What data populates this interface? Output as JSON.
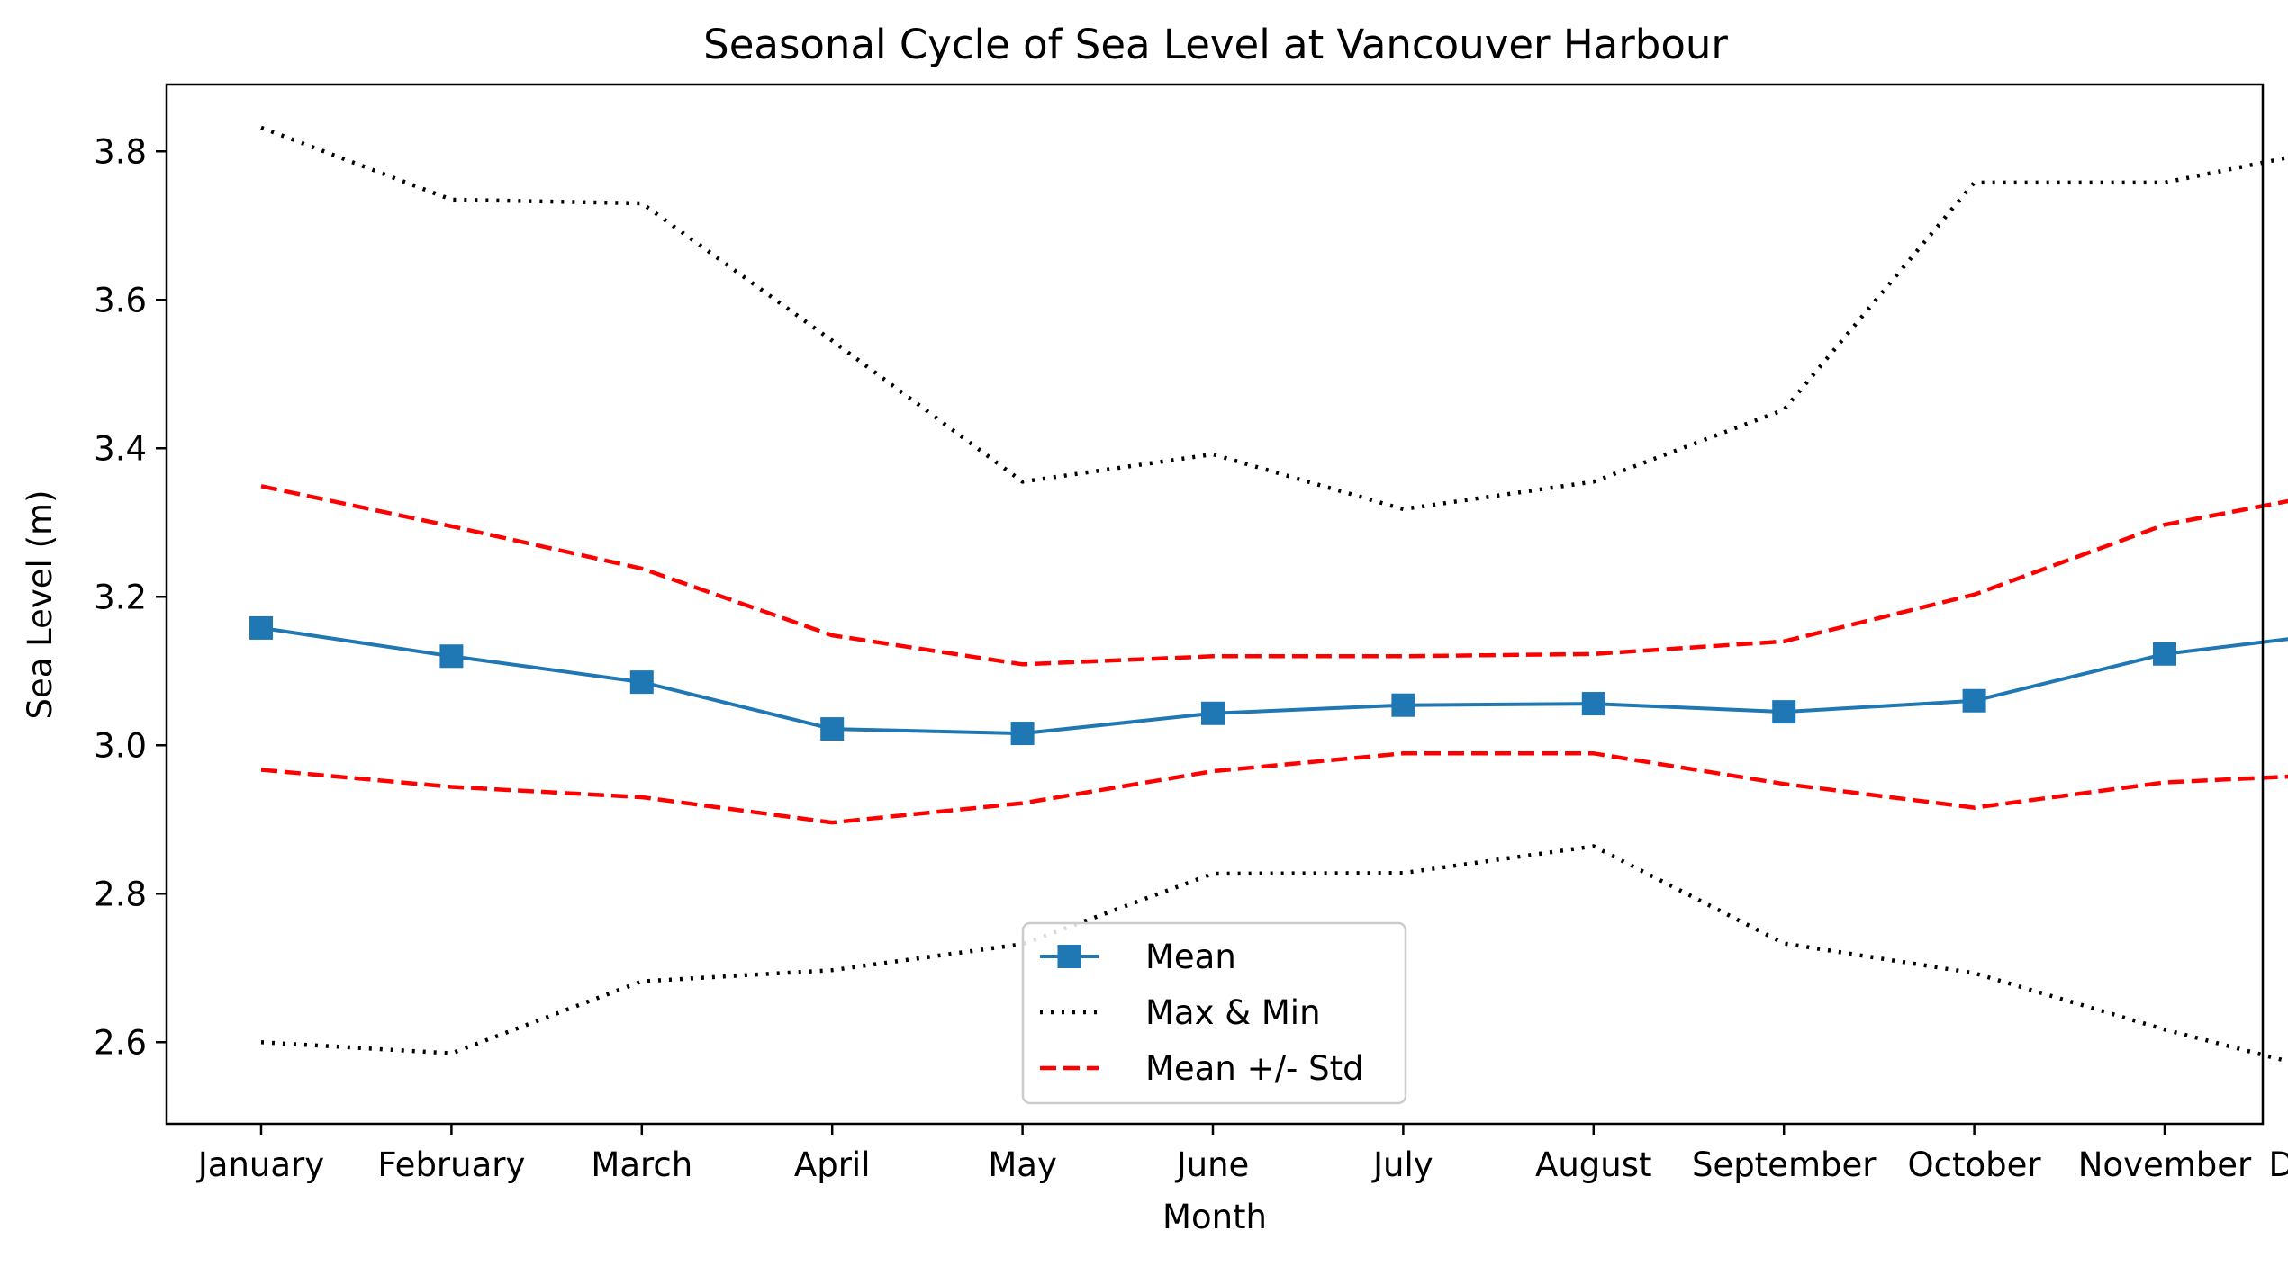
{
  "chart_data": {
    "type": "line",
    "title": "Seasonal Cycle of Sea Level at Vancouver Harbour",
    "xlabel": "Month",
    "ylabel": "Sea Level (m)",
    "categories": [
      "January",
      "February",
      "March",
      "April",
      "May",
      "June",
      "July",
      "August",
      "September",
      "October",
      "November",
      "December"
    ],
    "ylim": [
      2.49,
      3.89
    ],
    "yticks": [
      2.6,
      2.8,
      3.0,
      3.2,
      3.4,
      3.6,
      3.8
    ],
    "ytick_labels": [
      "2.6",
      "2.8",
      "3.0",
      "3.2",
      "3.4",
      "3.6",
      "3.8"
    ],
    "grid": false,
    "legend_position": "lower-center",
    "series": [
      {
        "key": "mean",
        "name": "Mean",
        "style": "solid",
        "marker": "square",
        "color": "#1f77b4",
        "values": [
          3.158,
          3.12,
          3.085,
          3.022,
          3.016,
          3.043,
          3.054,
          3.056,
          3.045,
          3.06,
          3.123,
          3.154
        ]
      },
      {
        "key": "max",
        "name": "Max & Min",
        "legend": true,
        "style": "dotted",
        "color": "#000000",
        "values": [
          3.832,
          3.735,
          3.73,
          3.545,
          3.355,
          3.392,
          3.318,
          3.355,
          3.452,
          3.758,
          3.758,
          3.81
        ]
      },
      {
        "key": "min",
        "legend": false,
        "style": "dotted",
        "color": "#000000",
        "values": [
          2.6,
          2.585,
          2.682,
          2.697,
          2.732,
          2.827,
          2.828,
          2.864,
          2.733,
          2.693,
          2.617,
          2.551
        ]
      },
      {
        "key": "upper",
        "name": "Mean +/- Std",
        "legend": true,
        "style": "dashed",
        "color": "#ff0000",
        "values": [
          3.349,
          3.295,
          3.238,
          3.148,
          3.109,
          3.12,
          3.12,
          3.123,
          3.14,
          3.203,
          3.297,
          3.346
        ]
      },
      {
        "key": "lower",
        "legend": false,
        "style": "dashed",
        "color": "#ff0000",
        "values": [
          2.967,
          2.944,
          2.93,
          2.896,
          2.922,
          2.965,
          2.989,
          2.989,
          2.948,
          2.916,
          2.95,
          2.962
        ]
      }
    ]
  }
}
